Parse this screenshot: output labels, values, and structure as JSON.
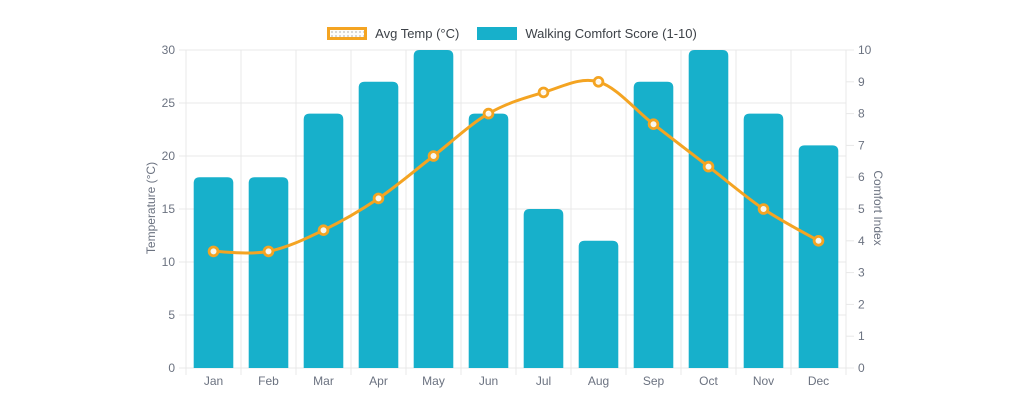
{
  "legend": {
    "items": [
      {
        "id": "avg-temp",
        "label": "Avg Temp (°C)",
        "type": "line",
        "color": "#f4a422"
      },
      {
        "id": "walking-comfort",
        "label": "Walking Comfort Score (1-10)",
        "type": "bar",
        "color": "#17b0cb"
      }
    ]
  },
  "chart_data": {
    "type": "combo",
    "categories": [
      "Jan",
      "Feb",
      "Mar",
      "Apr",
      "May",
      "Jun",
      "Jul",
      "Aug",
      "Sep",
      "Oct",
      "Nov",
      "Dec"
    ],
    "series": [
      {
        "name": "Avg Temp (°C)",
        "type": "line",
        "axis": "left",
        "color": "#f4a422",
        "values": [
          11,
          11,
          13,
          16,
          20,
          24,
          26,
          27,
          23,
          19,
          15,
          12
        ]
      },
      {
        "name": "Walking Comfort Score (1-10)",
        "type": "bar",
        "axis": "right",
        "color": "#17b0cb",
        "values": [
          6,
          6,
          8,
          9,
          10,
          8,
          5,
          4,
          9,
          10,
          8,
          7
        ]
      }
    ],
    "y_left": {
      "label": "Temperature (°C)",
      "min": 0,
      "max": 30,
      "tick_step": 5
    },
    "y_right": {
      "label": "Comfort Index",
      "min": 0,
      "max": 10,
      "tick_step": 1
    },
    "grid": true,
    "legend_position": "top",
    "title": ""
  },
  "colors": {
    "background": "#ffffff",
    "grid": "#e8e8e8",
    "tick_label": "#6b7280",
    "axis_title": "#6b7280",
    "legend_text": "#3d4248",
    "bar": "#17b0cb",
    "line": "#f4a422",
    "marker_center": "#ffffff"
  }
}
